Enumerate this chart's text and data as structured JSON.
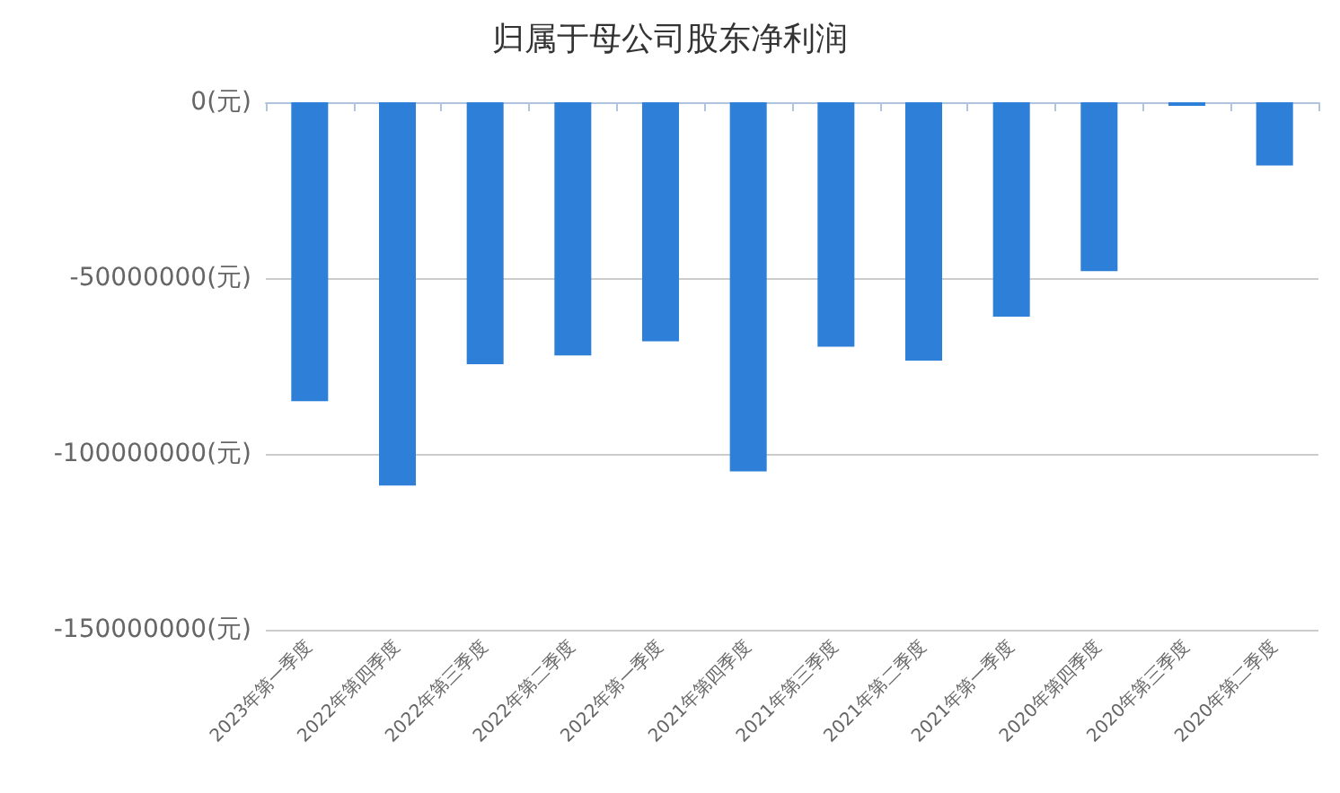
{
  "chart_data": {
    "type": "bar",
    "title": "归属于母公司股东净利润",
    "categories": [
      "2023年第一季度",
      "2022年第四季度",
      "2022年第三季度",
      "2022年第二季度",
      "2022年第一季度",
      "2021年第四季度",
      "2021年第三季度",
      "2021年第二季度",
      "2021年第一季度",
      "2020年第四季度",
      "2020年第三季度",
      "2020年第二季度"
    ],
    "values": [
      -85000000,
      -109000000,
      -74500000,
      -72000000,
      -68000000,
      -105000000,
      -69500000,
      -73500000,
      -61000000,
      -48000000,
      -1000000,
      -18000000
    ],
    "color": "#2e7fd8",
    "ylim": [
      -150000000,
      0
    ],
    "yticks": [
      {
        "value": -150000000,
        "label": "-150000000(元)"
      },
      {
        "value": -100000000,
        "label": "-100000000(元)"
      },
      {
        "value": -50000000,
        "label": "-50000000(元)"
      },
      {
        "value": 0,
        "label": "0(元)"
      }
    ],
    "grid": "y"
  }
}
